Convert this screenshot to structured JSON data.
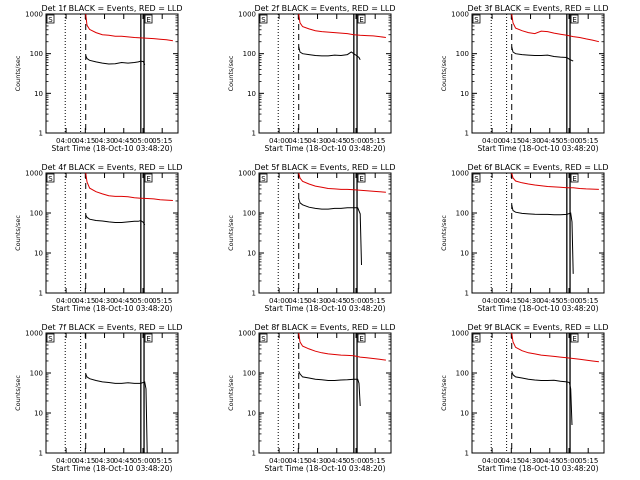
{
  "figure": {
    "background": "#ffffff",
    "ylabel": "Counts/sec",
    "xlabel": "Start Time (18-Oct-10 03:48:20)",
    "x_tick_labels": [
      "04:00",
      "04:15",
      "04:30",
      "04:45",
      "05:00",
      "05:15"
    ],
    "y_tick_labels": [
      "1",
      "10",
      "100",
      "1000"
    ],
    "series_colors": {
      "events": "#000000",
      "lld": "#dd0000"
    },
    "marker_labels": {
      "left_box": "S",
      "right_box": "E"
    }
  },
  "chart_data": [
    {
      "type": "line",
      "title": "Det 1f BLACK = Events, RED = LLD",
      "xlabel": "Start Time (18-Oct-10 03:48:20)",
      "ylabel": "Counts/sec",
      "x_unit": "minutes after 03:48:20",
      "xlim": [
        -4,
        99
      ],
      "ylim": [
        1,
        1000
      ],
      "yscale": "log",
      "grid": false,
      "legend": "none",
      "markers": {
        "dotted_1": 11,
        "dotted_2": 23,
        "dashed": 27,
        "solid_box_start": 70,
        "solid_box_end": 72.5
      },
      "series": [
        {
          "values_key": "events",
          "x": [
            27,
            28,
            30,
            35,
            40,
            45,
            50,
            55,
            60,
            65,
            68,
            70,
            72,
            73
          ],
          "y": [
            90,
            75,
            68,
            62,
            58,
            55,
            56,
            60,
            58,
            60,
            62,
            65,
            63,
            52
          ]
        },
        {
          "values_key": "lld",
          "x": [
            27,
            28,
            30,
            35,
            40,
            45,
            50,
            55,
            60,
            65,
            70,
            75,
            80,
            85,
            90,
            95
          ],
          "y": [
            1000,
            520,
            410,
            340,
            300,
            290,
            275,
            275,
            265,
            255,
            250,
            245,
            240,
            232,
            225,
            212
          ]
        }
      ]
    },
    {
      "type": "line",
      "title": "Det 2f BLACK = Events, RED = LLD",
      "xlabel": "Start Time (18-Oct-10 03:48:20)",
      "ylabel": "Counts/sec",
      "x_unit": "minutes after 03:48:20",
      "xlim": [
        -4,
        99
      ],
      "ylim": [
        1,
        1000
      ],
      "yscale": "log",
      "grid": false,
      "legend": "none",
      "markers": {
        "dotted_1": 11,
        "dotted_2": 23,
        "dashed": 27,
        "solid_box_start": 70,
        "solid_box_end": 72.5
      },
      "series": [
        {
          "values_key": "events",
          "x": [
            27,
            28,
            30,
            35,
            40,
            45,
            50,
            55,
            60,
            65,
            68,
            70,
            72,
            74,
            75
          ],
          "y": [
            150,
            110,
            100,
            95,
            90,
            88,
            88,
            92,
            90,
            95,
            110,
            100,
            90,
            80,
            70
          ]
        },
        {
          "values_key": "lld",
          "x": [
            27,
            28,
            30,
            35,
            40,
            45,
            50,
            55,
            60,
            65,
            70,
            75,
            80,
            85,
            90,
            95
          ],
          "y": [
            1000,
            600,
            480,
            420,
            380,
            360,
            350,
            340,
            330,
            320,
            300,
            290,
            285,
            280,
            270,
            255
          ]
        }
      ]
    },
    {
      "type": "line",
      "title": "Det 3f BLACK = Events, RED = LLD",
      "xlabel": "Start Time (18-Oct-10 03:48:20)",
      "ylabel": "Counts/sec",
      "x_unit": "minutes after 03:48:20",
      "xlim": [
        -4,
        99
      ],
      "ylim": [
        1,
        1000
      ],
      "yscale": "log",
      "grid": false,
      "legend": "none",
      "markers": {
        "dotted_1": 11,
        "dotted_2": 23,
        "dashed": 27,
        "solid_box_start": 70,
        "solid_box_end": 72.5
      },
      "series": [
        {
          "values_key": "events",
          "x": [
            27,
            28,
            30,
            35,
            40,
            45,
            50,
            55,
            60,
            65,
            70,
            72,
            75
          ],
          "y": [
            150,
            110,
            100,
            95,
            92,
            90,
            90,
            92,
            85,
            82,
            80,
            72,
            65
          ]
        },
        {
          "values_key": "lld",
          "x": [
            27,
            28,
            30,
            35,
            40,
            45,
            50,
            55,
            60,
            65,
            70,
            75,
            80,
            85,
            90,
            95
          ],
          "y": [
            1000,
            600,
            440,
            380,
            340,
            320,
            370,
            360,
            330,
            310,
            290,
            270,
            255,
            235,
            220,
            200
          ]
        }
      ]
    },
    {
      "type": "line",
      "title": "Det 4f BLACK = Events, RED = LLD",
      "xlabel": "Start Time (18-Oct-10 03:48:20)",
      "ylabel": "Counts/sec",
      "x_unit": "minutes after 03:48:20",
      "xlim": [
        -4,
        99
      ],
      "ylim": [
        1,
        1000
      ],
      "yscale": "log",
      "grid": false,
      "legend": "none",
      "markers": {
        "dotted_1": 11,
        "dotted_2": 23,
        "dashed": 27,
        "solid_box_start": 70,
        "solid_box_end": 72.5
      },
      "series": [
        {
          "values_key": "events",
          "x": [
            27,
            28,
            30,
            35,
            40,
            45,
            50,
            55,
            60,
            65,
            68,
            70,
            72,
            73
          ],
          "y": [
            90,
            78,
            70,
            65,
            63,
            60,
            58,
            58,
            60,
            62,
            62,
            65,
            58,
            50
          ]
        },
        {
          "values_key": "lld",
          "x": [
            27,
            28,
            30,
            35,
            40,
            45,
            50,
            55,
            60,
            65,
            70,
            75,
            80,
            85,
            90,
            95
          ],
          "y": [
            1000,
            600,
            420,
            340,
            300,
            270,
            260,
            260,
            255,
            240,
            235,
            230,
            225,
            215,
            210,
            205
          ]
        }
      ]
    },
    {
      "type": "line",
      "title": "Det 5f BLACK = Events, RED = LLD",
      "xlabel": "Start Time (18-Oct-10 03:48:20)",
      "ylabel": "Counts/sec",
      "x_unit": "minutes after 03:48:20",
      "xlim": [
        -4,
        99
      ],
      "ylim": [
        1,
        1000
      ],
      "yscale": "log",
      "grid": false,
      "legend": "none",
      "markers": {
        "dotted_1": 11,
        "dotted_2": 23,
        "dashed": 27,
        "solid_box_start": 70,
        "solid_box_end": 72.5
      },
      "series": [
        {
          "values_key": "events",
          "x": [
            27,
            28,
            30,
            35,
            40,
            45,
            50,
            55,
            60,
            65,
            70,
            73,
            75,
            76
          ],
          "y": [
            230,
            180,
            160,
            140,
            130,
            125,
            125,
            130,
            130,
            135,
            135,
            135,
            95,
            5
          ]
        },
        {
          "values_key": "lld",
          "x": [
            27,
            28,
            30,
            35,
            40,
            45,
            50,
            55,
            60,
            65,
            70,
            75,
            80,
            85,
            90,
            95
          ],
          "y": [
            1000,
            750,
            620,
            530,
            470,
            440,
            410,
            400,
            390,
            390,
            380,
            370,
            360,
            350,
            340,
            330
          ]
        }
      ]
    },
    {
      "type": "line",
      "title": "Det 6f BLACK = Events, RED = LLD",
      "xlabel": "Start Time (18-Oct-10 03:48:20)",
      "ylabel": "Counts/sec",
      "x_unit": "minutes after 03:48:20",
      "xlim": [
        -4,
        99
      ],
      "ylim": [
        1,
        1000
      ],
      "yscale": "log",
      "grid": false,
      "legend": "none",
      "markers": {
        "dotted_1": 11,
        "dotted_2": 23,
        "dashed": 27,
        "solid_box_start": 70,
        "solid_box_end": 72.5
      },
      "series": [
        {
          "values_key": "events",
          "x": [
            27,
            28,
            30,
            35,
            40,
            45,
            50,
            55,
            60,
            65,
            70,
            73,
            74,
            75
          ],
          "y": [
            160,
            115,
            105,
            98,
            95,
            93,
            92,
            92,
            90,
            90,
            92,
            100,
            60,
            3
          ]
        },
        {
          "values_key": "lld",
          "x": [
            27,
            28,
            30,
            35,
            40,
            45,
            50,
            55,
            60,
            65,
            70,
            75,
            80,
            85,
            90,
            95
          ],
          "y": [
            1000,
            750,
            630,
            570,
            530,
            500,
            480,
            460,
            450,
            440,
            430,
            430,
            410,
            400,
            395,
            390
          ]
        }
      ]
    },
    {
      "type": "line",
      "title": "Det 7f BLACK = Events, RED = LLD",
      "xlabel": "Start Time (18-Oct-10 03:48:20)",
      "ylabel": "Counts/sec",
      "x_unit": "minutes after 03:48:20",
      "xlim": [
        -4,
        99
      ],
      "ylim": [
        1,
        1000
      ],
      "yscale": "log",
      "grid": false,
      "legend": "none",
      "markers": {
        "dotted_1": 11,
        "dotted_2": 23,
        "dashed": 27,
        "solid_box_start": 70,
        "solid_box_end": 72.5
      },
      "series": [
        {
          "values_key": "events",
          "x": [
            27,
            28,
            30,
            35,
            40,
            45,
            50,
            55,
            60,
            65,
            70,
            73,
            74,
            75
          ],
          "y": [
            95,
            80,
            72,
            65,
            60,
            58,
            55,
            55,
            57,
            55,
            55,
            60,
            40,
            1
          ]
        }
      ]
    },
    {
      "type": "line",
      "title": "Det 8f BLACK = Events, RED = LLD",
      "xlabel": "Start Time (18-Oct-10 03:48:20)",
      "ylabel": "Counts/sec",
      "x_unit": "minutes after 03:48:20",
      "xlim": [
        -4,
        99
      ],
      "ylim": [
        1,
        1000
      ],
      "yscale": "log",
      "grid": false,
      "legend": "none",
      "markers": {
        "dotted_1": 11,
        "dotted_2": 23,
        "dashed": 27,
        "solid_box_start": 70,
        "solid_box_end": 72.5
      },
      "series": [
        {
          "values_key": "events",
          "x": [
            27,
            28,
            30,
            35,
            40,
            45,
            50,
            55,
            60,
            65,
            70,
            73,
            74,
            75
          ],
          "y": [
            110,
            95,
            80,
            75,
            70,
            68,
            65,
            65,
            67,
            68,
            70,
            70,
            55,
            15
          ]
        },
        {
          "values_key": "lld",
          "x": [
            27,
            28,
            30,
            35,
            40,
            45,
            50,
            55,
            60,
            65,
            70,
            75,
            80,
            85,
            90,
            95
          ],
          "y": [
            1000,
            600,
            470,
            400,
            350,
            320,
            300,
            290,
            280,
            275,
            270,
            250,
            240,
            230,
            220,
            210
          ]
        }
      ]
    },
    {
      "type": "line",
      "title": "Det 9f BLACK = Events, RED = LLD",
      "xlabel": "Start Time (18-Oct-10 03:48:20)",
      "ylabel": "Counts/sec",
      "x_unit": "minutes after 03:48:20",
      "xlim": [
        -4,
        99
      ],
      "ylim": [
        1,
        1000
      ],
      "yscale": "log",
      "grid": false,
      "legend": "none",
      "markers": {
        "dotted_1": 11,
        "dotted_2": 23,
        "dashed": 27,
        "solid_box_start": 70,
        "solid_box_end": 72.5
      },
      "series": [
        {
          "values_key": "events",
          "x": [
            27,
            28,
            30,
            35,
            40,
            45,
            50,
            55,
            60,
            65,
            70,
            72,
            73,
            74
          ],
          "y": [
            110,
            90,
            80,
            75,
            70,
            67,
            65,
            65,
            66,
            62,
            60,
            58,
            40,
            5
          ]
        },
        {
          "values_key": "lld",
          "x": [
            27,
            28,
            30,
            35,
            40,
            45,
            50,
            55,
            60,
            65,
            70,
            75,
            80,
            85,
            90,
            95
          ],
          "y": [
            1000,
            600,
            440,
            360,
            320,
            300,
            280,
            270,
            260,
            250,
            240,
            230,
            220,
            210,
            200,
            190
          ]
        }
      ]
    }
  ]
}
